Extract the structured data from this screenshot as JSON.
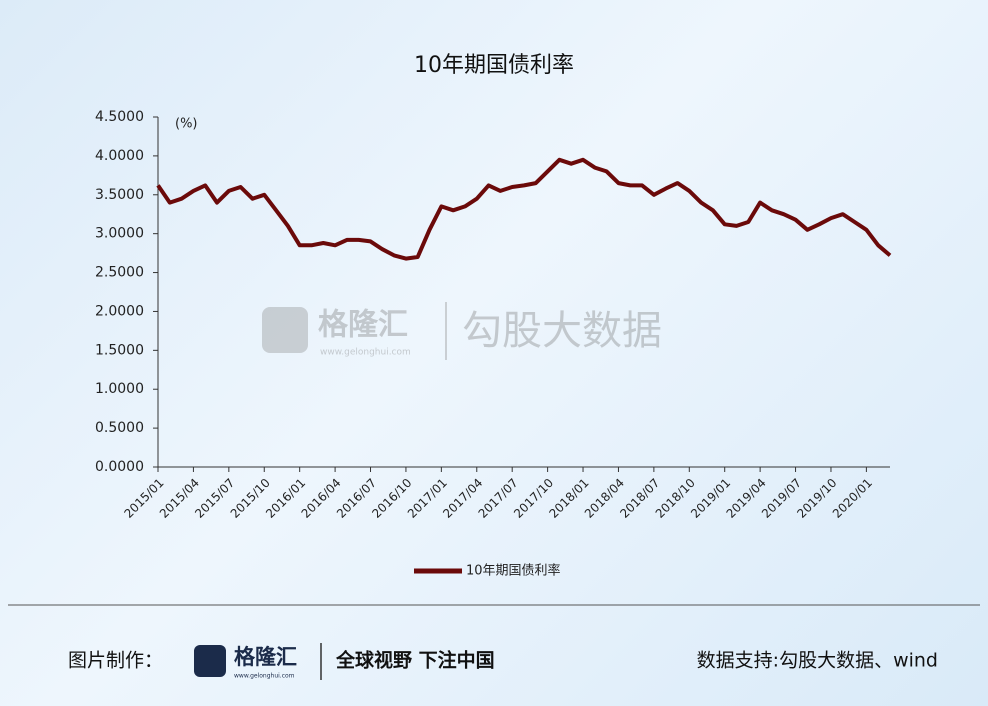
{
  "chart_data": {
    "type": "line",
    "title": "10年期国债利率",
    "y_unit_label": "(%)",
    "x": [
      "2015/01",
      "2015/02",
      "2015/03",
      "2015/04",
      "2015/05",
      "2015/06",
      "2015/07",
      "2015/08",
      "2015/09",
      "2015/10",
      "2015/11",
      "2015/12",
      "2016/01",
      "2016/02",
      "2016/03",
      "2016/04",
      "2016/05",
      "2016/06",
      "2016/07",
      "2016/08",
      "2016/09",
      "2016/10",
      "2016/11",
      "2016/12",
      "2017/01",
      "2017/02",
      "2017/03",
      "2017/04",
      "2017/05",
      "2017/06",
      "2017/07",
      "2017/08",
      "2017/09",
      "2017/10",
      "2017/11",
      "2017/12",
      "2018/01",
      "2018/02",
      "2018/03",
      "2018/04",
      "2018/05",
      "2018/06",
      "2018/07",
      "2018/08",
      "2018/09",
      "2018/10",
      "2018/11",
      "2018/12",
      "2019/01",
      "2019/02",
      "2019/03",
      "2019/04",
      "2019/05",
      "2019/06",
      "2019/07",
      "2019/08",
      "2019/09",
      "2019/10",
      "2019/11",
      "2019/12",
      "2020/01",
      "2020/02",
      "2020/03"
    ],
    "series": [
      {
        "name": "10年期国债利率",
        "color": "#6b0a0a",
        "values": [
          3.62,
          3.4,
          3.45,
          3.55,
          3.62,
          3.4,
          3.55,
          3.6,
          3.45,
          3.5,
          3.3,
          3.1,
          2.85,
          2.85,
          2.88,
          2.85,
          2.92,
          2.92,
          2.9,
          2.8,
          2.72,
          2.68,
          2.7,
          3.05,
          3.35,
          3.3,
          3.35,
          3.45,
          3.62,
          3.55,
          3.6,
          3.62,
          3.65,
          3.8,
          3.95,
          3.9,
          3.95,
          3.85,
          3.8,
          3.65,
          3.62,
          3.62,
          3.5,
          3.58,
          3.65,
          3.55,
          3.4,
          3.3,
          3.12,
          3.1,
          3.15,
          3.4,
          3.3,
          3.25,
          3.18,
          3.05,
          3.12,
          3.2,
          3.25,
          3.15,
          3.05,
          2.85,
          2.72
        ]
      }
    ],
    "xlim": [
      "2015/01",
      "2020/03"
    ],
    "xticks": [
      "2015/01",
      "2015/04",
      "2015/07",
      "2015/10",
      "2016/01",
      "2016/04",
      "2016/07",
      "2016/10",
      "2017/01",
      "2017/04",
      "2017/07",
      "2017/10",
      "2018/01",
      "2018/04",
      "2018/07",
      "2018/10",
      "2019/01",
      "2019/04",
      "2019/07",
      "2019/10",
      "2020/01"
    ],
    "ylim": [
      0,
      4.5
    ],
    "yticks": [
      {
        "value": 0,
        "label": "0.0000"
      },
      {
        "value": 0.5,
        "label": "0.5000"
      },
      {
        "value": 1,
        "label": "1.0000"
      },
      {
        "value": 1.5,
        "label": "1.5000"
      },
      {
        "value": 2,
        "label": "2.0000"
      },
      {
        "value": 2.5,
        "label": "2.5000"
      },
      {
        "value": 3,
        "label": "3.0000"
      },
      {
        "value": 3.5,
        "label": "3.5000"
      },
      {
        "value": 4,
        "label": "4.0000"
      },
      {
        "value": 4.5,
        "label": "4.5000"
      }
    ],
    "legend": "bottom"
  },
  "watermark": {
    "brand": "格隆汇",
    "site": "www.gelonghui.com",
    "partner": "勾股大数据"
  },
  "footer": {
    "made_by": "图片制作：",
    "brand": "格隆汇",
    "site": "www.gelonghui.com",
    "slogan": "全球视野 下注中国",
    "source": "数据支持:勾股大数据、wind"
  }
}
